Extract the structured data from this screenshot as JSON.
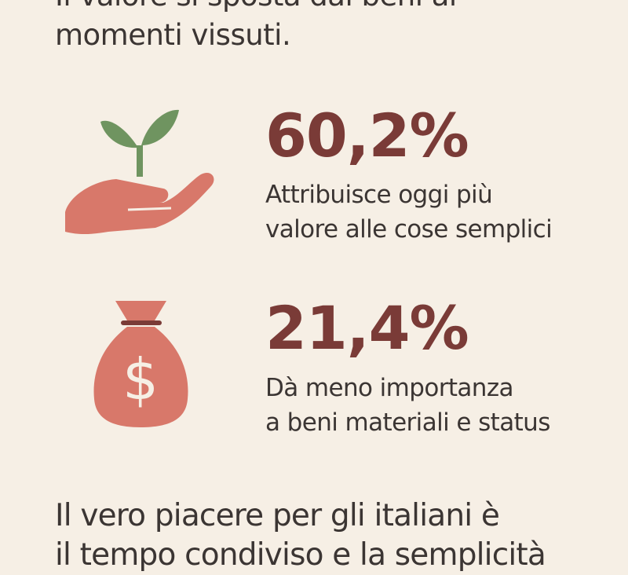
{
  "intro": {
    "line1": "Il valore si sposta dai beni ai",
    "line2": "momenti vissuti."
  },
  "stats": [
    {
      "value": "60,2%",
      "line1": "Attribuisce oggi più",
      "line2": "valore alle cose semplici",
      "icon": "hand-with-sprout-icon"
    },
    {
      "value": "21,4%",
      "line1": "Dà meno importanza",
      "line2": "a beni materiali e status",
      "icon": "money-bag-icon"
    }
  ],
  "outro": {
    "line1": "Il vero piacere per gli italiani è",
    "line2": "il tempo condiviso e la semplicità"
  },
  "colors": {
    "background": "#f6efe5",
    "stat": "#7a3b37",
    "icon": "#d8786a",
    "leaf": "#6f9460",
    "text": "#3b3533"
  }
}
